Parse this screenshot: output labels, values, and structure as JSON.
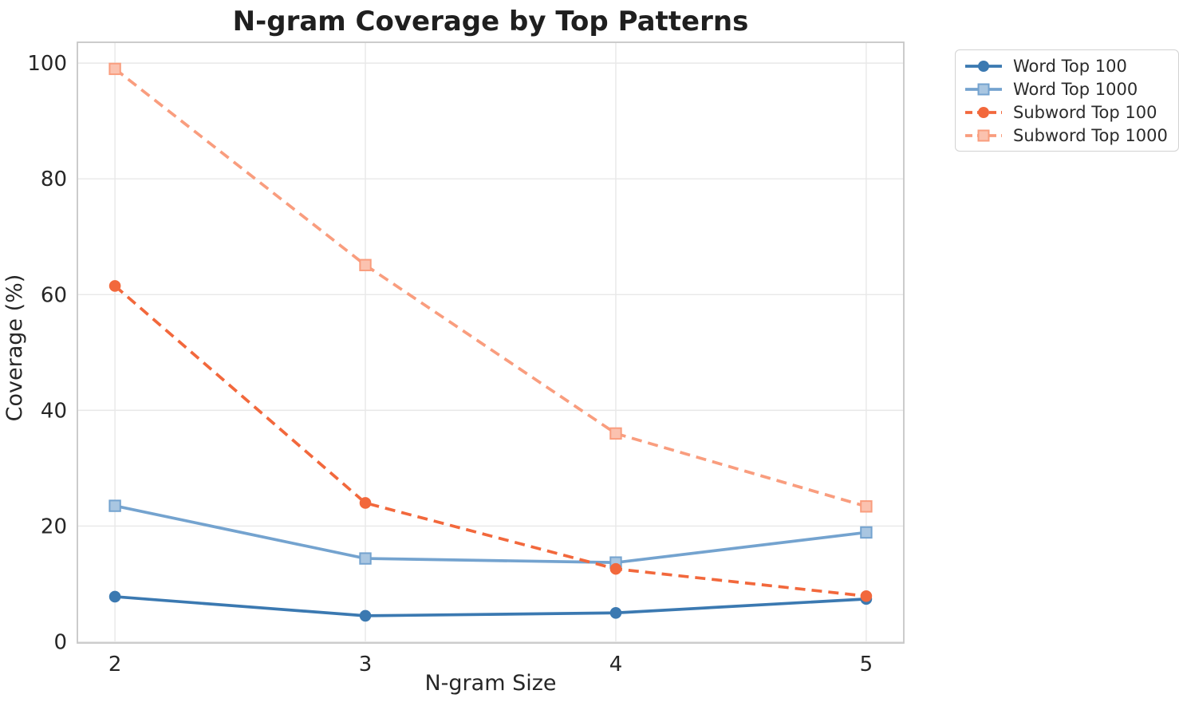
{
  "chart_data": {
    "type": "line",
    "title": "N-gram Coverage by Top Patterns",
    "xlabel": "N-gram Size",
    "ylabel": "Coverage (%)",
    "x": [
      2,
      3,
      4,
      5
    ],
    "xticks": [
      2,
      3,
      4,
      5
    ],
    "yticks": [
      0,
      20,
      40,
      60,
      80,
      100
    ],
    "xlim": [
      1.85,
      5.15
    ],
    "ylim": [
      -0.2,
      103.6
    ],
    "grid": true,
    "legend_position": "upper right, outside plot area",
    "series": [
      {
        "name": "Word Top 100",
        "values": [
          7.8,
          4.5,
          5.0,
          7.4
        ],
        "color": "#3b79b1",
        "marker": "circle",
        "dash": false
      },
      {
        "name": "Word Top 1000",
        "values": [
          23.5,
          14.4,
          13.7,
          18.9
        ],
        "color": "#74a3cf",
        "marker": "square",
        "dash": false
      },
      {
        "name": "Subword Top 100",
        "values": [
          61.5,
          24.0,
          12.6,
          7.9
        ],
        "color": "#f2683c",
        "marker": "circle",
        "dash": true
      },
      {
        "name": "Subword Top 1000",
        "values": [
          99.0,
          65.1,
          36.0,
          23.4
        ],
        "color": "#f99d7e",
        "marker": "square",
        "dash": true
      }
    ],
    "colors": {
      "grid": "#e8e8e8",
      "spine": "#c7c7c7",
      "text": "#262626"
    }
  }
}
